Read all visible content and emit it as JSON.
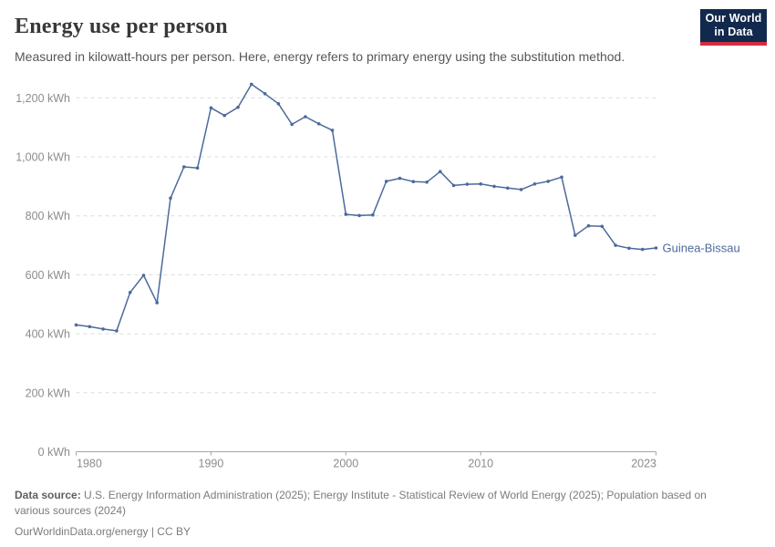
{
  "header": {
    "title": "Energy use per person",
    "subtitle": "Measured in kilowatt-hours per person. Here, energy refers to primary energy using the substitution method.",
    "logo": {
      "line1": "Our World",
      "line2": "in Data",
      "bg_color": "#12294d",
      "accent_color": "#d12d42"
    }
  },
  "chart_data": {
    "type": "line",
    "title": "Energy use per person",
    "unit": "kWh",
    "xlabel": "",
    "ylabel": "",
    "grid": true,
    "legend_position": "end-of-line-label",
    "xlim": [
      1980,
      2023
    ],
    "ylim": [
      0,
      1200
    ],
    "x_ticks": [
      {
        "year": 1980,
        "label": "1980",
        "align": "start"
      },
      {
        "year": 1990,
        "label": "1990",
        "align": "middle"
      },
      {
        "year": 2000,
        "label": "2000",
        "align": "middle"
      },
      {
        "year": 2010,
        "label": "2010",
        "align": "middle"
      },
      {
        "year": 2023,
        "label": "2023",
        "align": "end"
      }
    ],
    "y_ticks": [
      {
        "value": 0,
        "label": "0 kWh"
      },
      {
        "value": 200,
        "label": "200 kWh"
      },
      {
        "value": 400,
        "label": "400 kWh"
      },
      {
        "value": 600,
        "label": "600 kWh"
      },
      {
        "value": 800,
        "label": "800 kWh"
      },
      {
        "value": 1000,
        "label": "1,000 kWh"
      },
      {
        "value": 1200,
        "label": "1,200 kWh"
      }
    ],
    "series": [
      {
        "name": "Guinea-Bissau",
        "color": "#4c6a9c",
        "x": [
          1980,
          1981,
          1982,
          1983,
          1984,
          1985,
          1986,
          1987,
          1988,
          1989,
          1990,
          1991,
          1992,
          1993,
          1994,
          1995,
          1996,
          1997,
          1998,
          1999,
          2000,
          2001,
          2002,
          2003,
          2004,
          2005,
          2006,
          2007,
          2008,
          2009,
          2010,
          2011,
          2012,
          2013,
          2014,
          2015,
          2016,
          2017,
          2018,
          2019,
          2020,
          2021,
          2022,
          2023
        ],
        "values": [
          430,
          424,
          416,
          410,
          540,
          598,
          505,
          860,
          966,
          962,
          1166,
          1140,
          1168,
          1246,
          1214,
          1180,
          1110,
          1136,
          1112,
          1090,
          805,
          801,
          803,
          917,
          927,
          916,
          914,
          950,
          903,
          907,
          908,
          900,
          894,
          889,
          908,
          917,
          931,
          734,
          766,
          764,
          700,
          690,
          686,
          691
        ]
      }
    ]
  },
  "footer": {
    "datasource_label": "Data source:",
    "datasource_text": " U.S. Energy Information Administration (2025); Energy Institute - Statistical Review of World Energy (2025); Population based on various sources (2024)",
    "license_line": "OurWorldinData.org/energy | CC BY"
  }
}
